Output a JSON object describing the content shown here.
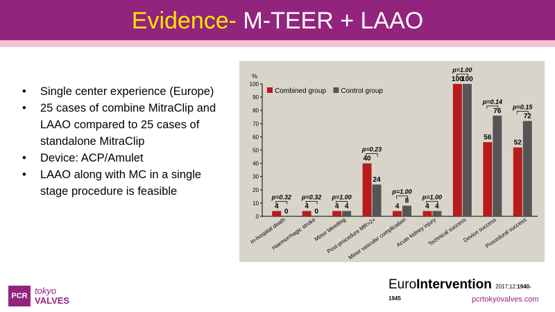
{
  "slide": {
    "title_accent": "Evidence-",
    "title_main": " M-TEER + LAAO",
    "bullets": [
      "Single center experience (Europe)",
      "25 cases of combine MitraClip and LAAO compared to 25 cases of standalone MitraClip",
      "Device: ACP/Amulet",
      "LAAO along with MC in a single stage procedure is feasible"
    ],
    "bullet_symbol": "•",
    "logo": {
      "pcr": "PCR",
      "tokyo": "tokyo",
      "valves": "VALVES"
    },
    "journal": {
      "name_light": "Euro",
      "name_bold": "Intervention",
      "citation": "2017;12:",
      "pages_a": "1940-",
      "pages_b": "1945"
    },
    "website": "pcrtokyovalves.com",
    "colors": {
      "header": "#93247e",
      "band": "#f4c2d4",
      "accent": "#ffe600"
    }
  },
  "chart_data": {
    "type": "bar",
    "unit_label": "%",
    "ylim": [
      0,
      100
    ],
    "yticks": [
      0,
      10,
      20,
      30,
      40,
      50,
      60,
      70,
      80,
      90,
      100
    ],
    "categories": [
      "In-hospital death",
      "Haemorrhagic stroke",
      "Minor bleeding",
      "Post-procedure MR>2+",
      "Minor vascular complication",
      "Acute kidney injury",
      "Technical success",
      "Device success",
      "Procedural success"
    ],
    "series": [
      {
        "name": "Combined group",
        "color": "#b71c1c",
        "values": [
          4,
          4,
          4,
          40,
          4,
          4,
          100,
          56,
          52
        ]
      },
      {
        "name": "Control group",
        "color": "#555555",
        "values": [
          0,
          0,
          4,
          24,
          8,
          4,
          100,
          76,
          72
        ]
      }
    ],
    "p_values": [
      "p=0.32",
      "p=0.32",
      "p=1.00",
      "p=0.23",
      "p=1.00",
      "p=1.00",
      "p=1.00",
      "p=0.14",
      "p=0.15"
    ],
    "legend_position": "top-left",
    "background": "#d9d4ca"
  }
}
